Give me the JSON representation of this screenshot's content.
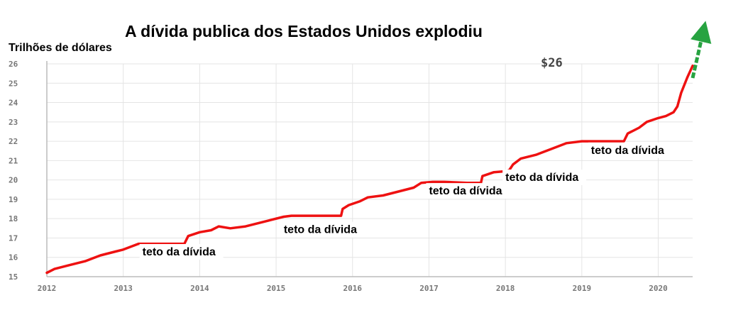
{
  "chart_data": {
    "type": "line",
    "title": "A dívida publica dos Estados Unidos explodiu",
    "ylabel": "Trilhões de dólares",
    "xlabel": "",
    "xlim": [
      2012.0,
      2020.45
    ],
    "ylim": [
      15,
      26
    ],
    "grid": true,
    "x_ticks": [
      "2012",
      "2013",
      "2014",
      "2015",
      "2016",
      "2017",
      "2018",
      "2019",
      "2020"
    ],
    "y_ticks": [
      "15",
      "16",
      "17",
      "18",
      "19",
      "20",
      "21",
      "22",
      "23",
      "24",
      "25",
      "26"
    ],
    "line_color": "#ee1111",
    "arrow_color": "#27a341",
    "end_label": "$26",
    "series": [
      {
        "values": [
          [
            2012.0,
            15.2
          ],
          [
            2012.1,
            15.4
          ],
          [
            2012.3,
            15.6
          ],
          [
            2012.5,
            15.8
          ],
          [
            2012.7,
            16.1
          ],
          [
            2012.9,
            16.3
          ],
          [
            2013.0,
            16.4
          ],
          [
            2013.2,
            16.7
          ],
          [
            2013.6,
            16.7
          ],
          [
            2013.8,
            16.7
          ],
          [
            2013.85,
            17.1
          ],
          [
            2014.0,
            17.3
          ],
          [
            2014.15,
            17.4
          ],
          [
            2014.25,
            17.6
          ],
          [
            2014.4,
            17.5
          ],
          [
            2014.6,
            17.6
          ],
          [
            2014.9,
            17.9
          ],
          [
            2015.1,
            18.1
          ],
          [
            2015.2,
            18.15
          ],
          [
            2015.5,
            18.15
          ],
          [
            2015.85,
            18.15
          ],
          [
            2015.87,
            18.5
          ],
          [
            2015.95,
            18.7
          ],
          [
            2016.1,
            18.9
          ],
          [
            2016.2,
            19.1
          ],
          [
            2016.4,
            19.2
          ],
          [
            2016.6,
            19.4
          ],
          [
            2016.8,
            19.6
          ],
          [
            2016.9,
            19.85
          ],
          [
            2017.05,
            19.9
          ],
          [
            2017.2,
            19.9
          ],
          [
            2017.5,
            19.85
          ],
          [
            2017.68,
            19.85
          ],
          [
            2017.7,
            20.2
          ],
          [
            2017.85,
            20.4
          ],
          [
            2018.0,
            20.45
          ],
          [
            2018.05,
            20.5
          ],
          [
            2018.1,
            20.8
          ],
          [
            2018.2,
            21.1
          ],
          [
            2018.4,
            21.3
          ],
          [
            2018.6,
            21.6
          ],
          [
            2018.8,
            21.9
          ],
          [
            2019.0,
            22.0
          ],
          [
            2019.1,
            22.0
          ],
          [
            2019.3,
            22.0
          ],
          [
            2019.55,
            22.0
          ],
          [
            2019.6,
            22.4
          ],
          [
            2019.75,
            22.7
          ],
          [
            2019.85,
            23.0
          ],
          [
            2020.0,
            23.2
          ],
          [
            2020.1,
            23.3
          ],
          [
            2020.2,
            23.5
          ],
          [
            2020.25,
            23.8
          ],
          [
            2020.3,
            24.5
          ],
          [
            2020.38,
            25.3
          ],
          [
            2020.45,
            25.9
          ]
        ]
      }
    ],
    "annotations": [
      {
        "text": "teto da dívida",
        "x": 2013.25,
        "y": 16.1
      },
      {
        "text": "teto da dívida",
        "x": 2015.1,
        "y": 17.25
      },
      {
        "text": "teto da dívida",
        "x": 2017.0,
        "y": 19.25
      },
      {
        "text": "teto da dívida",
        "x": 2018.0,
        "y": 19.95
      },
      {
        "text": "teto da dívida",
        "x": 2019.12,
        "y": 21.35
      }
    ]
  }
}
